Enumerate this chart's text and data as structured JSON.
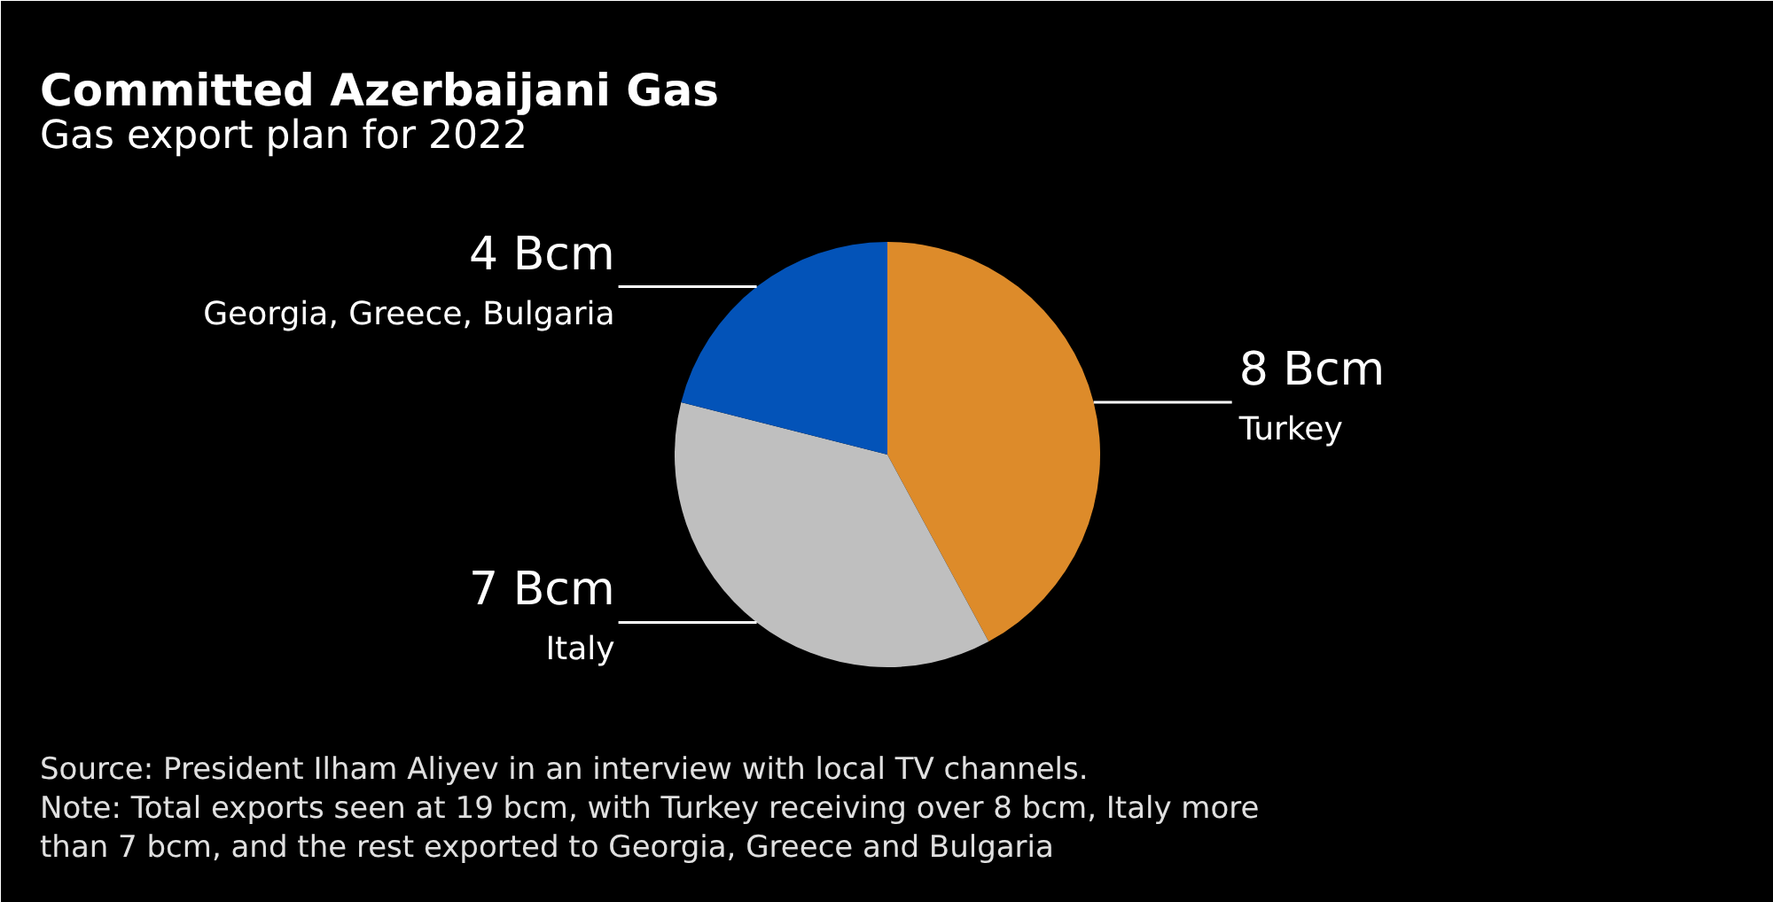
{
  "chart_data": {
    "type": "pie",
    "title": "Committed Azerbaijani Gas",
    "subtitle": "Gas export plan for 2022",
    "categories": [
      "Turkey",
      "Italy",
      "Georgia, Greece, Bulgaria"
    ],
    "values": [
      8,
      7,
      4
    ],
    "colors": [
      "#dd8b2a",
      "#bfbfbf",
      "#0353b8"
    ],
    "value_labels": [
      "8 Bcm",
      "7 Bcm",
      "4 Bcm"
    ],
    "annotations": [
      "Source: President Ilham Aliyev in an interview with local TV channels.",
      "Note: Total exports seen at 19 bcm, with Turkey receiving over 8 bcm, Italy more than 7 bcm, and the rest exported to Georgia, Greece and Bulgaria"
    ]
  }
}
